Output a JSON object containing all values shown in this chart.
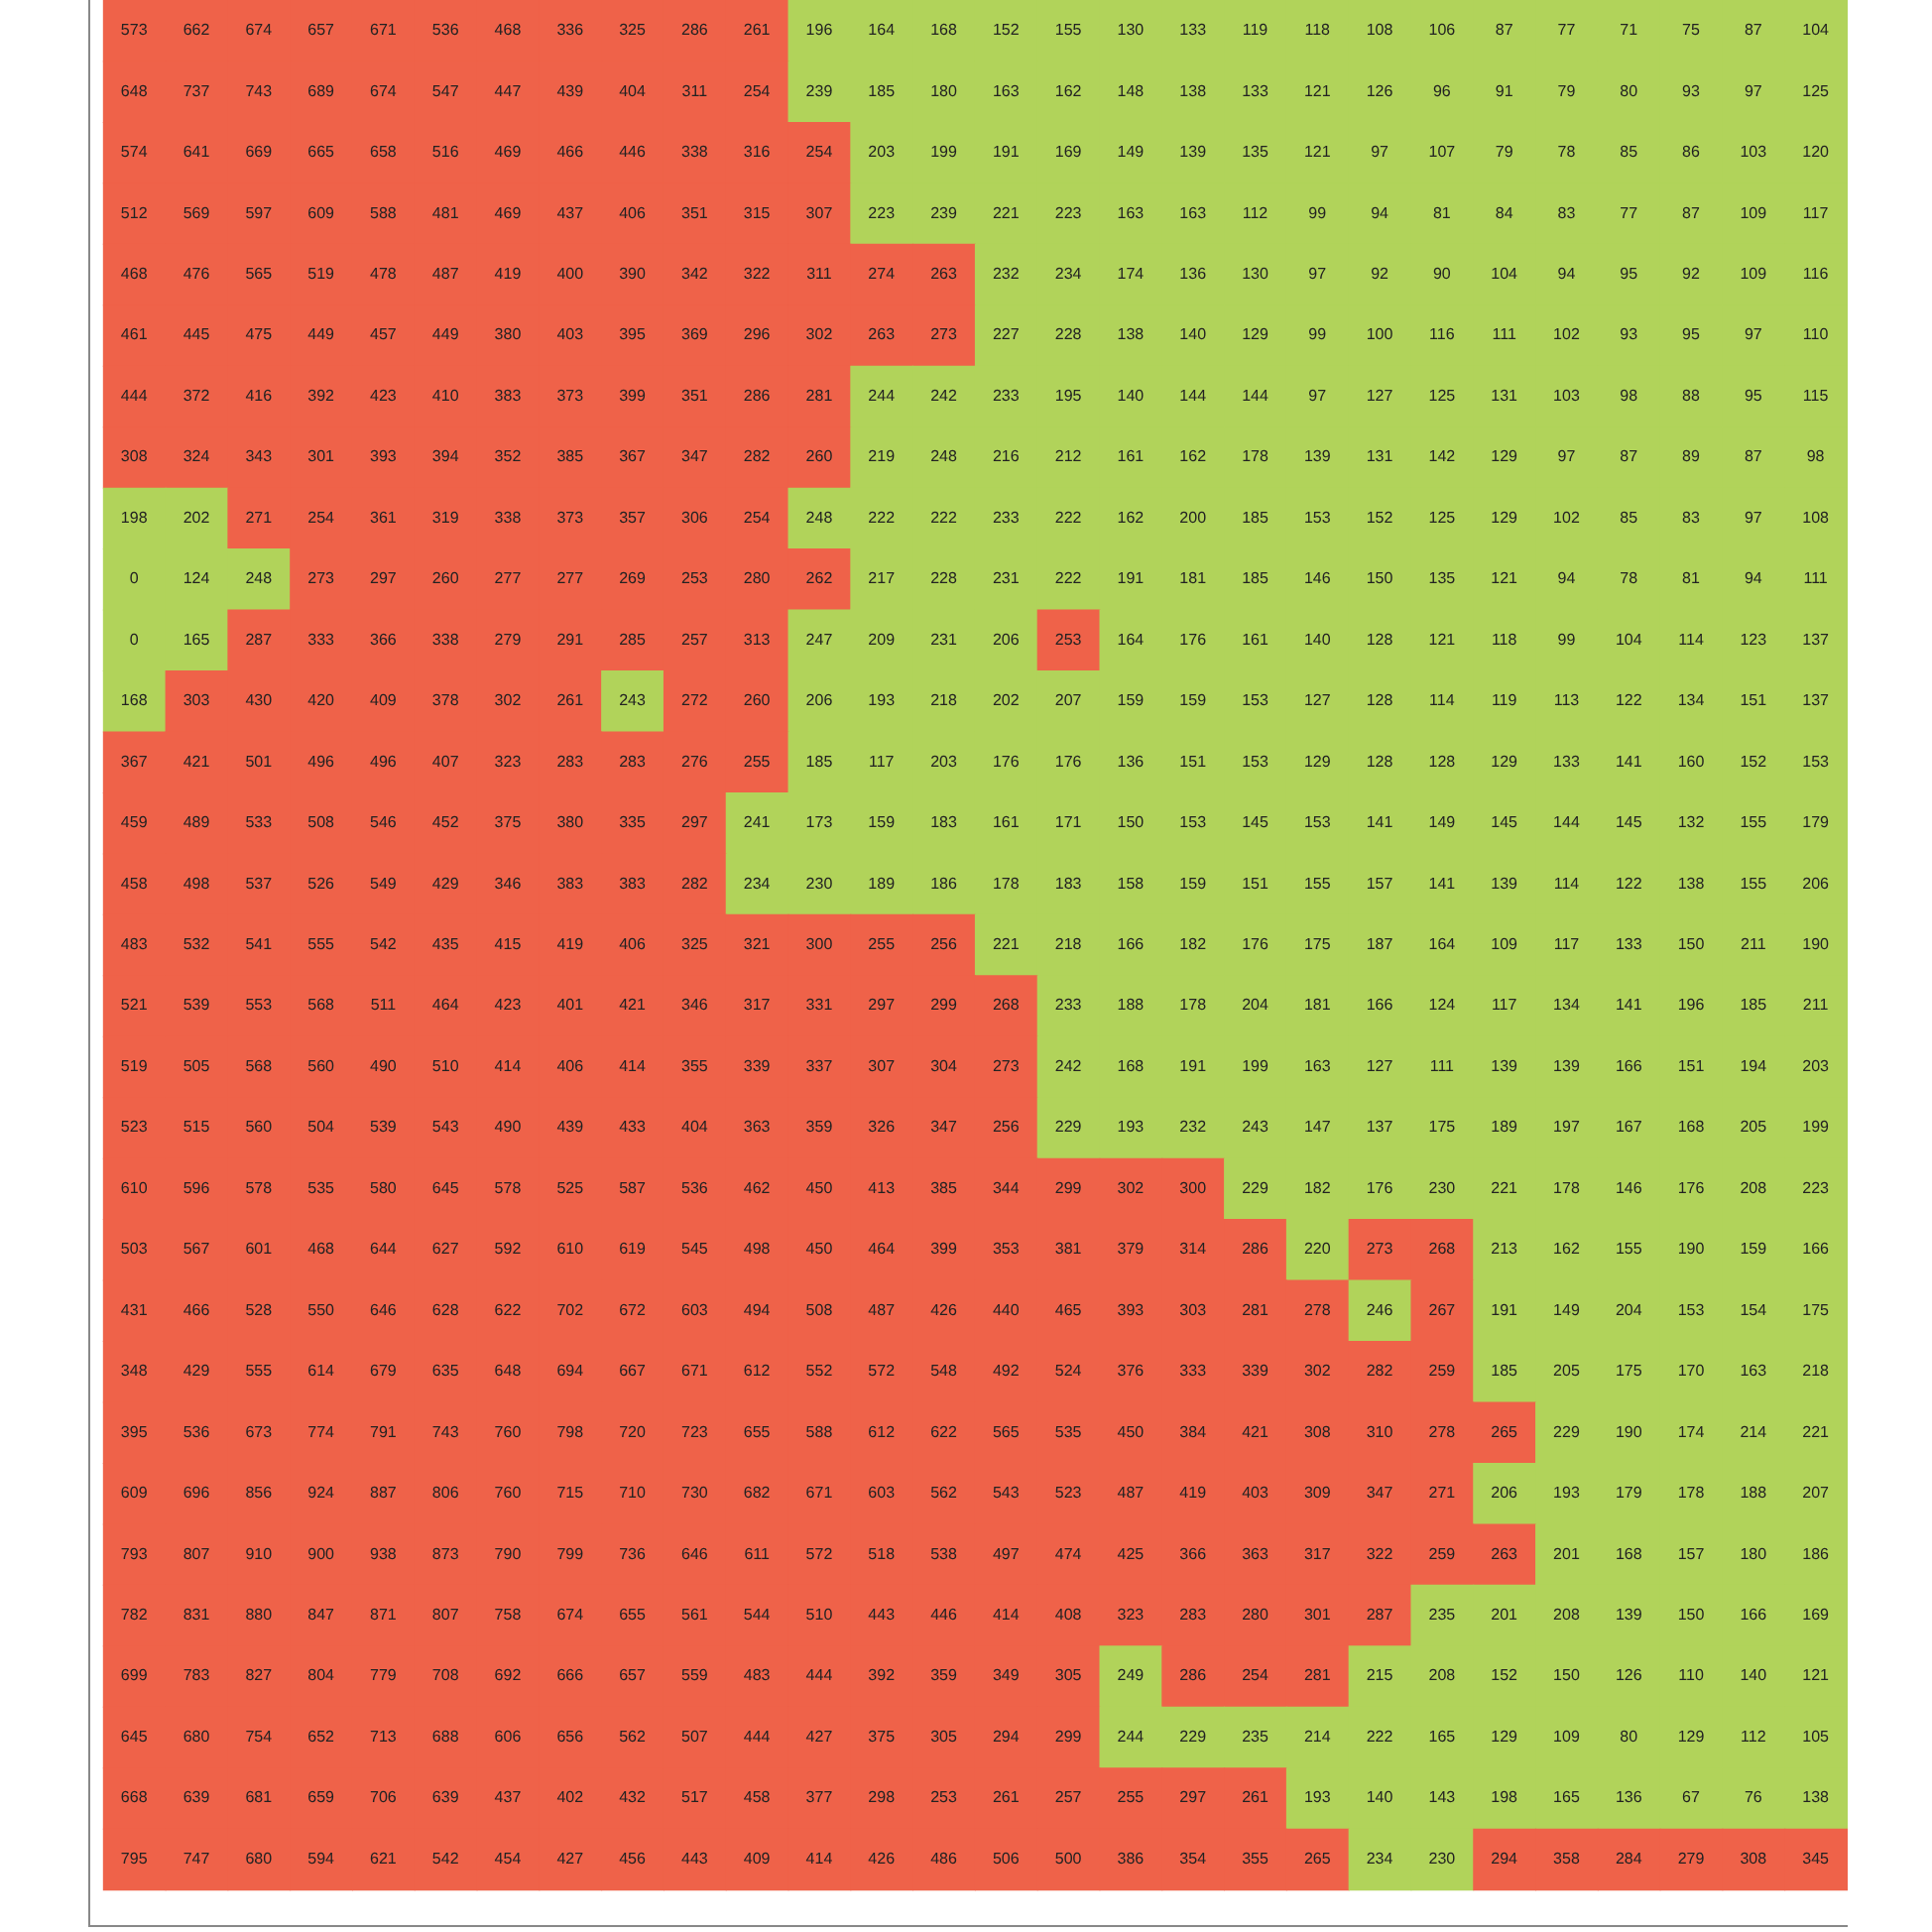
{
  "chart_data": {
    "type": "heatmap",
    "categories": [
      null,
      null,
      null,
      null,
      null,
      null,
      null,
      null,
      null,
      null,
      null,
      null,
      null,
      null,
      null,
      null,
      null,
      null,
      null,
      null,
      null,
      null,
      null,
      null,
      null,
      null,
      null,
      null
    ],
    "y_categories": [
      null,
      null,
      null,
      null,
      null,
      null,
      null,
      null,
      null,
      null,
      null,
      null,
      null,
      null,
      null,
      null,
      null,
      null,
      null,
      null,
      null,
      null,
      null,
      null,
      null,
      null,
      null,
      null,
      null,
      null,
      null
    ],
    "colors": [
      [
        "#ef6249",
        "#ef6249",
        "#ef6249",
        "#ef6249",
        "#ef6249",
        "#ef6249",
        "#ef6249",
        "#ef6249",
        "#ef6249",
        "#ef6249",
        "#ef6249",
        "#b1d35a",
        "#b1d35a",
        "#b1d35a",
        "#b1d35a",
        "#b1d35a",
        "#b1d35a",
        "#b1d35a",
        "#b1d35a",
        "#b1d35a",
        "#b1d35a",
        "#b1d35a",
        "#b1d35a",
        "#b1d35a",
        "#b1d35a",
        "#b1d35a",
        "#b1d35a",
        "#b1d35a"
      ],
      [
        "#ef6249",
        "#ef6249",
        "#ef6249",
        "#ef6249",
        "#ef6249",
        "#ef6249",
        "#ef6249",
        "#ef6249",
        "#ef6249",
        "#ef6249",
        "#ef6249",
        "#b1d35a",
        "#b1d35a",
        "#b1d35a",
        "#b1d35a",
        "#b1d35a",
        "#b1d35a",
        "#b1d35a",
        "#b1d35a",
        "#b1d35a",
        "#b1d35a",
        "#b1d35a",
        "#b1d35a",
        "#b1d35a",
        "#b1d35a",
        "#b1d35a",
        "#b1d35a",
        "#b1d35a"
      ],
      [
        "#ef6249",
        "#ef6249",
        "#ef6249",
        "#ef6249",
        "#ef6249",
        "#ef6249",
        "#ef6249",
        "#ef6249",
        "#ef6249",
        "#ef6249",
        "#ef6249",
        "#ef6249",
        "#b1d35a",
        "#b1d35a",
        "#b1d35a",
        "#b1d35a",
        "#b1d35a",
        "#b1d35a",
        "#b1d35a",
        "#b1d35a",
        "#b1d35a",
        "#b1d35a",
        "#b1d35a",
        "#b1d35a",
        "#b1d35a",
        "#b1d35a",
        "#b1d35a",
        "#b1d35a"
      ],
      [
        "#ef6249",
        "#ef6249",
        "#ef6249",
        "#ef6249",
        "#ef6249",
        "#ef6249",
        "#ef6249",
        "#ef6249",
        "#ef6249",
        "#ef6249",
        "#ef6249",
        "#ef6249",
        "#b1d35a",
        "#b1d35a",
        "#b1d35a",
        "#b1d35a",
        "#b1d35a",
        "#b1d35a",
        "#b1d35a",
        "#b1d35a",
        "#b1d35a",
        "#b1d35a",
        "#b1d35a",
        "#b1d35a",
        "#b1d35a",
        "#b1d35a",
        "#b1d35a",
        "#b1d35a"
      ],
      [
        "#ef6249",
        "#ef6249",
        "#ef6249",
        "#ef6249",
        "#ef6249",
        "#ef6249",
        "#ef6249",
        "#ef6249",
        "#ef6249",
        "#ef6249",
        "#ef6249",
        "#ef6249",
        "#ef6249",
        "#ef6249",
        "#b1d35a",
        "#b1d35a",
        "#b1d35a",
        "#b1d35a",
        "#b1d35a",
        "#b1d35a",
        "#b1d35a",
        "#b1d35a",
        "#b1d35a",
        "#b1d35a",
        "#b1d35a",
        "#b1d35a",
        "#b1d35a",
        "#b1d35a"
      ],
      [
        "#ef6249",
        "#ef6249",
        "#ef6249",
        "#ef6249",
        "#ef6249",
        "#ef6249",
        "#ef6249",
        "#ef6249",
        "#ef6249",
        "#ef6249",
        "#ef6249",
        "#ef6249",
        "#ef6249",
        "#ef6249",
        "#b1d35a",
        "#b1d35a",
        "#b1d35a",
        "#b1d35a",
        "#b1d35a",
        "#b1d35a",
        "#b1d35a",
        "#b1d35a",
        "#b1d35a",
        "#b1d35a",
        "#b1d35a",
        "#b1d35a",
        "#b1d35a",
        "#b1d35a"
      ],
      [
        "#ef6249",
        "#ef6249",
        "#ef6249",
        "#ef6249",
        "#ef6249",
        "#ef6249",
        "#ef6249",
        "#ef6249",
        "#ef6249",
        "#ef6249",
        "#ef6249",
        "#ef6249",
        "#b1d35a",
        "#b1d35a",
        "#b1d35a",
        "#b1d35a",
        "#b1d35a",
        "#b1d35a",
        "#b1d35a",
        "#b1d35a",
        "#b1d35a",
        "#b1d35a",
        "#b1d35a",
        "#b1d35a",
        "#b1d35a",
        "#b1d35a",
        "#b1d35a",
        "#b1d35a"
      ],
      [
        "#ef6249",
        "#ef6249",
        "#ef6249",
        "#ef6249",
        "#ef6249",
        "#ef6249",
        "#ef6249",
        "#ef6249",
        "#ef6249",
        "#ef6249",
        "#ef6249",
        "#ef6249",
        "#b1d35a",
        "#b1d35a",
        "#b1d35a",
        "#b1d35a",
        "#b1d35a",
        "#b1d35a",
        "#b1d35a",
        "#b1d35a",
        "#b1d35a",
        "#b1d35a",
        "#b1d35a",
        "#b1d35a",
        "#b1d35a",
        "#b1d35a",
        "#b1d35a",
        "#b1d35a"
      ],
      [
        "#b1d35a",
        "#b1d35a",
        "#ef6249",
        "#ef6249",
        "#ef6249",
        "#ef6249",
        "#ef6249",
        "#ef6249",
        "#ef6249",
        "#ef6249",
        "#ef6249",
        "#b1d35a",
        "#b1d35a",
        "#b1d35a",
        "#b1d35a",
        "#b1d35a",
        "#b1d35a",
        "#b1d35a",
        "#b1d35a",
        "#b1d35a",
        "#b1d35a",
        "#b1d35a",
        "#b1d35a",
        "#b1d35a",
        "#b1d35a",
        "#b1d35a",
        "#b1d35a",
        "#b1d35a"
      ],
      [
        "#b1d35a",
        "#b1d35a",
        "#b1d35a",
        "#ef6249",
        "#ef6249",
        "#ef6249",
        "#ef6249",
        "#ef6249",
        "#ef6249",
        "#ef6249",
        "#ef6249",
        "#ef6249",
        "#b1d35a",
        "#b1d35a",
        "#b1d35a",
        "#b1d35a",
        "#b1d35a",
        "#b1d35a",
        "#b1d35a",
        "#b1d35a",
        "#b1d35a",
        "#b1d35a",
        "#b1d35a",
        "#b1d35a",
        "#b1d35a",
        "#b1d35a",
        "#b1d35a",
        "#b1d35a"
      ],
      [
        "#b1d35a",
        "#b1d35a",
        "#ef6249",
        "#ef6249",
        "#ef6249",
        "#ef6249",
        "#ef6249",
        "#ef6249",
        "#ef6249",
        "#ef6249",
        "#ef6249",
        "#b1d35a",
        "#b1d35a",
        "#b1d35a",
        "#b1d35a",
        "#ef6249",
        "#b1d35a",
        "#b1d35a",
        "#b1d35a",
        "#b1d35a",
        "#b1d35a",
        "#b1d35a",
        "#b1d35a",
        "#b1d35a",
        "#b1d35a",
        "#b1d35a",
        "#b1d35a",
        "#b1d35a"
      ],
      [
        "#b1d35a",
        "#ef6249",
        "#ef6249",
        "#ef6249",
        "#ef6249",
        "#ef6249",
        "#ef6249",
        "#ef6249",
        "#b1d35a",
        "#ef6249",
        "#ef6249",
        "#b1d35a",
        "#b1d35a",
        "#b1d35a",
        "#b1d35a",
        "#b1d35a",
        "#b1d35a",
        "#b1d35a",
        "#b1d35a",
        "#b1d35a",
        "#b1d35a",
        "#b1d35a",
        "#b1d35a",
        "#b1d35a",
        "#b1d35a",
        "#b1d35a",
        "#b1d35a",
        "#b1d35a"
      ],
      [
        "#ef6249",
        "#ef6249",
        "#ef6249",
        "#ef6249",
        "#ef6249",
        "#ef6249",
        "#ef6249",
        "#ef6249",
        "#ef6249",
        "#ef6249",
        "#ef6249",
        "#b1d35a",
        "#b1d35a",
        "#b1d35a",
        "#b1d35a",
        "#b1d35a",
        "#b1d35a",
        "#b1d35a",
        "#b1d35a",
        "#b1d35a",
        "#b1d35a",
        "#b1d35a",
        "#b1d35a",
        "#b1d35a",
        "#b1d35a",
        "#b1d35a",
        "#b1d35a",
        "#b1d35a"
      ],
      [
        "#ef6249",
        "#ef6249",
        "#ef6249",
        "#ef6249",
        "#ef6249",
        "#ef6249",
        "#ef6249",
        "#ef6249",
        "#ef6249",
        "#ef6249",
        "#b1d35a",
        "#b1d35a",
        "#b1d35a",
        "#b1d35a",
        "#b1d35a",
        "#b1d35a",
        "#b1d35a",
        "#b1d35a",
        "#b1d35a",
        "#b1d35a",
        "#b1d35a",
        "#b1d35a",
        "#b1d35a",
        "#b1d35a",
        "#b1d35a",
        "#b1d35a",
        "#b1d35a",
        "#b1d35a"
      ],
      [
        "#ef6249",
        "#ef6249",
        "#ef6249",
        "#ef6249",
        "#ef6249",
        "#ef6249",
        "#ef6249",
        "#ef6249",
        "#ef6249",
        "#ef6249",
        "#b1d35a",
        "#b1d35a",
        "#b1d35a",
        "#b1d35a",
        "#b1d35a",
        "#b1d35a",
        "#b1d35a",
        "#b1d35a",
        "#b1d35a",
        "#b1d35a",
        "#b1d35a",
        "#b1d35a",
        "#b1d35a",
        "#b1d35a",
        "#b1d35a",
        "#b1d35a",
        "#b1d35a",
        "#b1d35a"
      ],
      [
        "#ef6249",
        "#ef6249",
        "#ef6249",
        "#ef6249",
        "#ef6249",
        "#ef6249",
        "#ef6249",
        "#ef6249",
        "#ef6249",
        "#ef6249",
        "#ef6249",
        "#ef6249",
        "#ef6249",
        "#ef6249",
        "#b1d35a",
        "#b1d35a",
        "#b1d35a",
        "#b1d35a",
        "#b1d35a",
        "#b1d35a",
        "#b1d35a",
        "#b1d35a",
        "#b1d35a",
        "#b1d35a",
        "#b1d35a",
        "#b1d35a",
        "#b1d35a",
        "#b1d35a"
      ],
      [
        "#ef6249",
        "#ef6249",
        "#ef6249",
        "#ef6249",
        "#ef6249",
        "#ef6249",
        "#ef6249",
        "#ef6249",
        "#ef6249",
        "#ef6249",
        "#ef6249",
        "#ef6249",
        "#ef6249",
        "#ef6249",
        "#ef6249",
        "#b1d35a",
        "#b1d35a",
        "#b1d35a",
        "#b1d35a",
        "#b1d35a",
        "#b1d35a",
        "#b1d35a",
        "#b1d35a",
        "#b1d35a",
        "#b1d35a",
        "#b1d35a",
        "#b1d35a",
        "#b1d35a"
      ],
      [
        "#ef6249",
        "#ef6249",
        "#ef6249",
        "#ef6249",
        "#ef6249",
        "#ef6249",
        "#ef6249",
        "#ef6249",
        "#ef6249",
        "#ef6249",
        "#ef6249",
        "#ef6249",
        "#ef6249",
        "#ef6249",
        "#ef6249",
        "#b1d35a",
        "#b1d35a",
        "#b1d35a",
        "#b1d35a",
        "#b1d35a",
        "#b1d35a",
        "#b1d35a",
        "#b1d35a",
        "#b1d35a",
        "#b1d35a",
        "#b1d35a",
        "#b1d35a",
        "#b1d35a"
      ],
      [
        "#ef6249",
        "#ef6249",
        "#ef6249",
        "#ef6249",
        "#ef6249",
        "#ef6249",
        "#ef6249",
        "#ef6249",
        "#ef6249",
        "#ef6249",
        "#ef6249",
        "#ef6249",
        "#ef6249",
        "#ef6249",
        "#ef6249",
        "#b1d35a",
        "#b1d35a",
        "#b1d35a",
        "#b1d35a",
        "#b1d35a",
        "#b1d35a",
        "#b1d35a",
        "#b1d35a",
        "#b1d35a",
        "#b1d35a",
        "#b1d35a",
        "#b1d35a",
        "#b1d35a"
      ],
      [
        "#ef6249",
        "#ef6249",
        "#ef6249",
        "#ef6249",
        "#ef6249",
        "#ef6249",
        "#ef6249",
        "#ef6249",
        "#ef6249",
        "#ef6249",
        "#ef6249",
        "#ef6249",
        "#ef6249",
        "#ef6249",
        "#ef6249",
        "#ef6249",
        "#ef6249",
        "#ef6249",
        "#b1d35a",
        "#b1d35a",
        "#b1d35a",
        "#b1d35a",
        "#b1d35a",
        "#b1d35a",
        "#b1d35a",
        "#b1d35a",
        "#b1d35a",
        "#b1d35a"
      ],
      [
        "#ef6249",
        "#ef6249",
        "#ef6249",
        "#ef6249",
        "#ef6249",
        "#ef6249",
        "#ef6249",
        "#ef6249",
        "#ef6249",
        "#ef6249",
        "#ef6249",
        "#ef6249",
        "#ef6249",
        "#ef6249",
        "#ef6249",
        "#ef6249",
        "#ef6249",
        "#ef6249",
        "#ef6249",
        "#b1d35a",
        "#ef6249",
        "#ef6249",
        "#b1d35a",
        "#b1d35a",
        "#b1d35a",
        "#b1d35a",
        "#b1d35a",
        "#b1d35a"
      ],
      [
        "#ef6249",
        "#ef6249",
        "#ef6249",
        "#ef6249",
        "#ef6249",
        "#ef6249",
        "#ef6249",
        "#ef6249",
        "#ef6249",
        "#ef6249",
        "#ef6249",
        "#ef6249",
        "#ef6249",
        "#ef6249",
        "#ef6249",
        "#ef6249",
        "#ef6249",
        "#ef6249",
        "#ef6249",
        "#ef6249",
        "#b1d35a",
        "#ef6249",
        "#b1d35a",
        "#b1d35a",
        "#b1d35a",
        "#b1d35a",
        "#b1d35a",
        "#b1d35a"
      ],
      [
        "#ef6249",
        "#ef6249",
        "#ef6249",
        "#ef6249",
        "#ef6249",
        "#ef6249",
        "#ef6249",
        "#ef6249",
        "#ef6249",
        "#ef6249",
        "#ef6249",
        "#ef6249",
        "#ef6249",
        "#ef6249",
        "#ef6249",
        "#ef6249",
        "#ef6249",
        "#ef6249",
        "#ef6249",
        "#ef6249",
        "#ef6249",
        "#ef6249",
        "#b1d35a",
        "#b1d35a",
        "#b1d35a",
        "#b1d35a",
        "#b1d35a",
        "#b1d35a"
      ],
      [
        "#ef6249",
        "#ef6249",
        "#ef6249",
        "#ef6249",
        "#ef6249",
        "#ef6249",
        "#ef6249",
        "#ef6249",
        "#ef6249",
        "#ef6249",
        "#ef6249",
        "#ef6249",
        "#ef6249",
        "#ef6249",
        "#ef6249",
        "#ef6249",
        "#ef6249",
        "#ef6249",
        "#ef6249",
        "#ef6249",
        "#ef6249",
        "#ef6249",
        "#ef6249",
        "#b1d35a",
        "#b1d35a",
        "#b1d35a",
        "#b1d35a",
        "#b1d35a"
      ],
      [
        "#ef6249",
        "#ef6249",
        "#ef6249",
        "#ef6249",
        "#ef6249",
        "#ef6249",
        "#ef6249",
        "#ef6249",
        "#ef6249",
        "#ef6249",
        "#ef6249",
        "#ef6249",
        "#ef6249",
        "#ef6249",
        "#ef6249",
        "#ef6249",
        "#ef6249",
        "#ef6249",
        "#ef6249",
        "#ef6249",
        "#ef6249",
        "#ef6249",
        "#b1d35a",
        "#b1d35a",
        "#b1d35a",
        "#b1d35a",
        "#b1d35a",
        "#b1d35a"
      ],
      [
        "#ef6249",
        "#ef6249",
        "#ef6249",
        "#ef6249",
        "#ef6249",
        "#ef6249",
        "#ef6249",
        "#ef6249",
        "#ef6249",
        "#ef6249",
        "#ef6249",
        "#ef6249",
        "#ef6249",
        "#ef6249",
        "#ef6249",
        "#ef6249",
        "#ef6249",
        "#ef6249",
        "#ef6249",
        "#ef6249",
        "#ef6249",
        "#ef6249",
        "#ef6249",
        "#b1d35a",
        "#b1d35a",
        "#b1d35a",
        "#b1d35a",
        "#b1d35a"
      ],
      [
        "#ef6249",
        "#ef6249",
        "#ef6249",
        "#ef6249",
        "#ef6249",
        "#ef6249",
        "#ef6249",
        "#ef6249",
        "#ef6249",
        "#ef6249",
        "#ef6249",
        "#ef6249",
        "#ef6249",
        "#ef6249",
        "#ef6249",
        "#ef6249",
        "#ef6249",
        "#ef6249",
        "#ef6249",
        "#ef6249",
        "#ef6249",
        "#b1d35a",
        "#b1d35a",
        "#b1d35a",
        "#b1d35a",
        "#b1d35a",
        "#b1d35a",
        "#b1d35a"
      ],
      [
        "#ef6249",
        "#ef6249",
        "#ef6249",
        "#ef6249",
        "#ef6249",
        "#ef6249",
        "#ef6249",
        "#ef6249",
        "#ef6249",
        "#ef6249",
        "#ef6249",
        "#ef6249",
        "#ef6249",
        "#ef6249",
        "#ef6249",
        "#ef6249",
        "#b1d35a",
        "#ef6249",
        "#ef6249",
        "#ef6249",
        "#b1d35a",
        "#b1d35a",
        "#b1d35a",
        "#b1d35a",
        "#b1d35a",
        "#b1d35a",
        "#b1d35a",
        "#b1d35a"
      ],
      [
        "#ef6249",
        "#ef6249",
        "#ef6249",
        "#ef6249",
        "#ef6249",
        "#ef6249",
        "#ef6249",
        "#ef6249",
        "#ef6249",
        "#ef6249",
        "#ef6249",
        "#ef6249",
        "#ef6249",
        "#ef6249",
        "#ef6249",
        "#ef6249",
        "#b1d35a",
        "#b1d35a",
        "#b1d35a",
        "#b1d35a",
        "#b1d35a",
        "#b1d35a",
        "#b1d35a",
        "#b1d35a",
        "#b1d35a",
        "#b1d35a",
        "#b1d35a",
        "#b1d35a"
      ],
      [
        "#ef6249",
        "#ef6249",
        "#ef6249",
        "#ef6249",
        "#ef6249",
        "#ef6249",
        "#ef6249",
        "#ef6249",
        "#ef6249",
        "#ef6249",
        "#ef6249",
        "#ef6249",
        "#ef6249",
        "#ef6249",
        "#ef6249",
        "#ef6249",
        "#ef6249",
        "#ef6249",
        "#ef6249",
        "#b1d35a",
        "#b1d35a",
        "#b1d35a",
        "#b1d35a",
        "#b1d35a",
        "#b1d35a",
        "#b1d35a",
        "#b1d35a",
        "#b1d35a"
      ],
      [
        "#ef6249",
        "#ef6249",
        "#ef6249",
        "#ef6249",
        "#ef6249",
        "#ef6249",
        "#ef6249",
        "#ef6249",
        "#ef6249",
        "#ef6249",
        "#ef6249",
        "#ef6249",
        "#ef6249",
        "#ef6249",
        "#ef6249",
        "#ef6249",
        "#ef6249",
        "#ef6249",
        "#ef6249",
        "#ef6249",
        "#b1d35a",
        "#b1d35a",
        "#ef6249",
        "#ef6249",
        "#ef6249",
        "#ef6249",
        "#ef6249",
        "#ef6249"
      ]
    ],
    "data_labels": true,
    "grid": false,
    "tick_labels": false,
    "cells": [
      [
        573,
        662,
        674,
        657,
        671,
        536,
        468,
        336,
        325,
        286,
        261,
        196,
        164,
        168,
        152,
        155,
        130,
        133,
        119,
        118,
        108,
        106,
        87,
        77,
        71,
        75,
        87,
        104
      ],
      [
        648,
        737,
        743,
        689,
        674,
        547,
        447,
        439,
        404,
        311,
        254,
        239,
        185,
        180,
        163,
        162,
        148,
        138,
        133,
        121,
        126,
        96,
        91,
        79,
        80,
        93,
        97,
        125
      ],
      [
        574,
        641,
        669,
        665,
        658,
        516,
        469,
        466,
        446,
        338,
        316,
        254,
        203,
        199,
        191,
        169,
        149,
        139,
        135,
        121,
        97,
        107,
        79,
        78,
        85,
        86,
        103,
        120
      ],
      [
        512,
        569,
        597,
        609,
        588,
        481,
        469,
        437,
        406,
        351,
        315,
        307,
        223,
        239,
        221,
        223,
        163,
        163,
        112,
        99,
        94,
        81,
        84,
        83,
        77,
        87,
        109,
        117
      ],
      [
        468,
        476,
        565,
        519,
        478,
        487,
        419,
        400,
        390,
        342,
        322,
        311,
        274,
        263,
        232,
        234,
        174,
        136,
        130,
        97,
        92,
        90,
        104,
        94,
        95,
        92,
        109,
        116
      ],
      [
        461,
        445,
        475,
        449,
        457,
        449,
        380,
        403,
        395,
        369,
        296,
        302,
        263,
        273,
        227,
        228,
        138,
        140,
        129,
        99,
        100,
        116,
        111,
        102,
        93,
        95,
        97,
        110
      ],
      [
        444,
        372,
        416,
        392,
        423,
        410,
        383,
        373,
        399,
        351,
        286,
        281,
        244,
        242,
        233,
        195,
        140,
        144,
        144,
        97,
        127,
        125,
        131,
        103,
        98,
        88,
        95,
        115
      ],
      [
        308,
        324,
        343,
        301,
        393,
        394,
        352,
        385,
        367,
        347,
        282,
        260,
        219,
        248,
        216,
        212,
        161,
        162,
        178,
        139,
        131,
        142,
        129,
        97,
        87,
        89,
        87,
        98
      ],
      [
        198,
        202,
        271,
        254,
        361,
        319,
        338,
        373,
        357,
        306,
        254,
        248,
        222,
        222,
        233,
        222,
        162,
        200,
        185,
        153,
        152,
        125,
        129,
        102,
        85,
        83,
        97,
        108
      ],
      [
        0,
        124,
        248,
        273,
        297,
        260,
        277,
        277,
        269,
        253,
        280,
        262,
        217,
        228,
        231,
        222,
        191,
        181,
        185,
        146,
        150,
        135,
        121,
        94,
        78,
        81,
        94,
        111
      ],
      [
        0,
        165,
        287,
        333,
        366,
        338,
        279,
        291,
        285,
        257,
        313,
        247,
        209,
        231,
        206,
        253,
        164,
        176,
        161,
        140,
        128,
        121,
        118,
        99,
        104,
        114,
        123,
        137
      ],
      [
        168,
        303,
        430,
        420,
        409,
        378,
        302,
        261,
        243,
        272,
        260,
        206,
        193,
        218,
        202,
        207,
        159,
        159,
        153,
        127,
        128,
        114,
        119,
        113,
        122,
        134,
        151,
        137
      ],
      [
        367,
        421,
        501,
        496,
        496,
        407,
        323,
        283,
        283,
        276,
        255,
        185,
        117,
        203,
        176,
        176,
        136,
        151,
        153,
        129,
        128,
        128,
        129,
        133,
        141,
        160,
        152,
        153
      ],
      [
        459,
        489,
        533,
        508,
        546,
        452,
        375,
        380,
        335,
        297,
        241,
        173,
        159,
        183,
        161,
        171,
        150,
        153,
        145,
        153,
        141,
        149,
        145,
        144,
        145,
        132,
        155,
        179
      ],
      [
        458,
        498,
        537,
        526,
        549,
        429,
        346,
        383,
        383,
        282,
        234,
        230,
        189,
        186,
        178,
        183,
        158,
        159,
        151,
        155,
        157,
        141,
        139,
        114,
        122,
        138,
        155,
        206
      ],
      [
        483,
        532,
        541,
        555,
        542,
        435,
        415,
        419,
        406,
        325,
        321,
        300,
        255,
        256,
        221,
        218,
        166,
        182,
        176,
        175,
        187,
        164,
        109,
        117,
        133,
        150,
        211,
        190
      ],
      [
        521,
        539,
        553,
        568,
        511,
        464,
        423,
        401,
        421,
        346,
        317,
        331,
        297,
        299,
        268,
        233,
        188,
        178,
        204,
        181,
        166,
        124,
        117,
        134,
        141,
        196,
        185,
        211
      ],
      [
        519,
        505,
        568,
        560,
        490,
        510,
        414,
        406,
        414,
        355,
        339,
        337,
        307,
        304,
        273,
        242,
        168,
        191,
        199,
        163,
        127,
        111,
        139,
        139,
        166,
        151,
        194,
        203
      ],
      [
        523,
        515,
        560,
        504,
        539,
        543,
        490,
        439,
        433,
        404,
        363,
        359,
        326,
        347,
        256,
        229,
        193,
        232,
        243,
        147,
        137,
        175,
        189,
        197,
        167,
        168,
        205,
        199
      ],
      [
        610,
        596,
        578,
        535,
        580,
        645,
        578,
        525,
        587,
        536,
        462,
        450,
        413,
        385,
        344,
        299,
        302,
        300,
        229,
        182,
        176,
        230,
        221,
        178,
        146,
        176,
        208,
        223
      ],
      [
        503,
        567,
        601,
        468,
        644,
        627,
        592,
        610,
        619,
        545,
        498,
        450,
        464,
        399,
        353,
        381,
        379,
        314,
        286,
        220,
        273,
        268,
        213,
        162,
        155,
        190,
        159,
        166
      ],
      [
        431,
        466,
        528,
        550,
        646,
        628,
        622,
        702,
        672,
        603,
        494,
        508,
        487,
        426,
        440,
        465,
        393,
        303,
        281,
        278,
        246,
        267,
        191,
        149,
        204,
        153,
        154,
        175
      ],
      [
        348,
        429,
        555,
        614,
        679,
        635,
        648,
        694,
        667,
        671,
        612,
        552,
        572,
        548,
        492,
        524,
        376,
        333,
        339,
        302,
        282,
        259,
        185,
        205,
        175,
        170,
        163,
        218
      ],
      [
        395,
        536,
        673,
        774,
        791,
        743,
        760,
        798,
        720,
        723,
        655,
        588,
        612,
        622,
        565,
        535,
        450,
        384,
        421,
        308,
        310,
        278,
        265,
        229,
        190,
        174,
        214,
        221
      ],
      [
        609,
        696,
        856,
        924,
        887,
        806,
        760,
        715,
        710,
        730,
        682,
        671,
        603,
        562,
        543,
        523,
        487,
        419,
        403,
        309,
        347,
        271,
        206,
        193,
        179,
        178,
        188,
        207
      ],
      [
        793,
        807,
        910,
        900,
        938,
        873,
        790,
        799,
        736,
        646,
        611,
        572,
        518,
        538,
        497,
        474,
        425,
        366,
        363,
        317,
        322,
        259,
        263,
        201,
        168,
        157,
        180,
        186
      ],
      [
        782,
        831,
        880,
        847,
        871,
        807,
        758,
        674,
        655,
        561,
        544,
        510,
        443,
        446,
        414,
        408,
        323,
        283,
        280,
        301,
        287,
        235,
        201,
        208,
        139,
        150,
        166,
        169
      ],
      [
        699,
        783,
        827,
        804,
        779,
        708,
        692,
        666,
        657,
        559,
        483,
        444,
        392,
        359,
        349,
        305,
        249,
        286,
        254,
        281,
        215,
        208,
        152,
        150,
        126,
        110,
        140,
        121
      ],
      [
        645,
        680,
        754,
        652,
        713,
        688,
        606,
        656,
        562,
        507,
        444,
        427,
        375,
        305,
        294,
        299,
        244,
        229,
        235,
        214,
        222,
        165,
        129,
        109,
        80,
        129,
        112,
        105
      ],
      [
        668,
        639,
        681,
        659,
        706,
        639,
        437,
        402,
        432,
        517,
        458,
        377,
        298,
        253,
        261,
        257,
        255,
        297,
        261,
        193,
        140,
        143,
        198,
        165,
        136,
        67,
        76,
        138
      ],
      [
        795,
        747,
        680,
        594,
        621,
        542,
        454,
        427,
        456,
        443,
        409,
        414,
        426,
        486,
        506,
        500,
        386,
        354,
        355,
        265,
        234,
        230,
        294,
        358,
        284,
        279,
        308,
        345
      ]
    ]
  }
}
